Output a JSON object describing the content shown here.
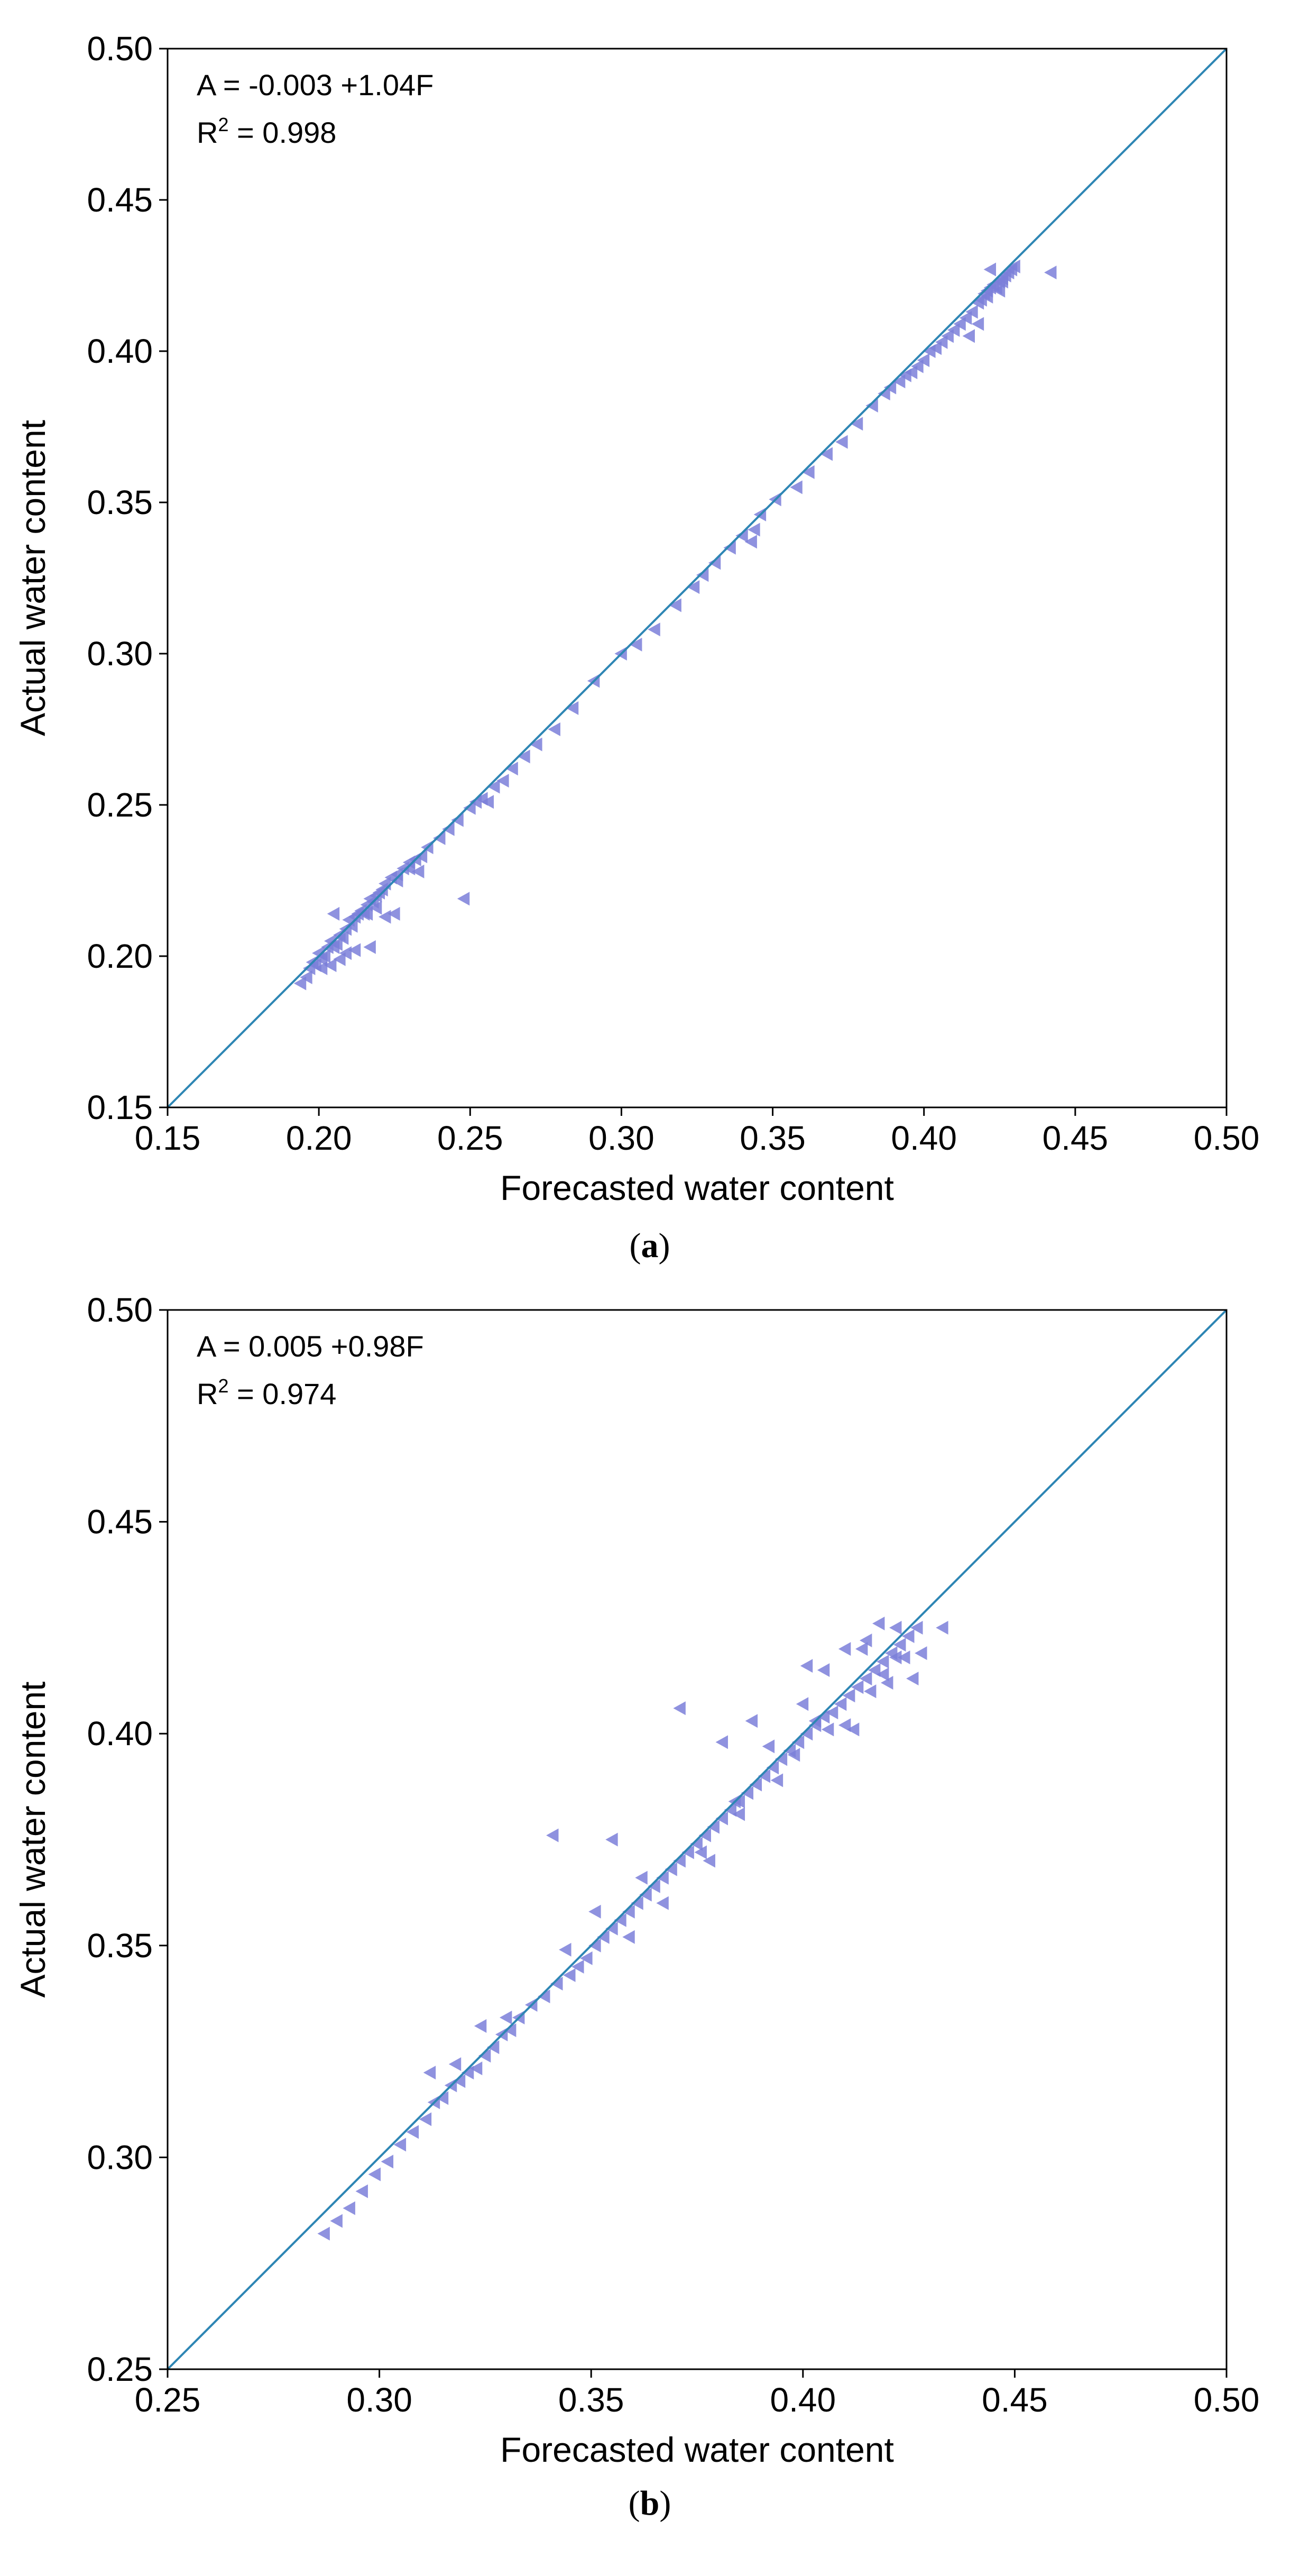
{
  "chart_data": [
    {
      "type": "scatter",
      "panel_label": "a",
      "xlabel": "Forecasted water content",
      "ylabel": "Actual water content",
      "xlim": [
        0.15,
        0.5
      ],
      "ylim": [
        0.15,
        0.5
      ],
      "xticks": [
        "0.15",
        "0.20",
        "0.25",
        "0.30",
        "0.35",
        "0.40",
        "0.45",
        "0.50"
      ],
      "yticks": [
        "0.15",
        "0.20",
        "0.25",
        "0.30",
        "0.35",
        "0.40",
        "0.45",
        "0.50"
      ],
      "equation": "A = -0.003 +1.04F",
      "r2_label": "R",
      "r2_sup": "2",
      "r2_value": " = 0.998",
      "identity_line": true,
      "grid": false,
      "marker": "triangle-left",
      "marker_color": "#7b7fd9",
      "line_color": "#2e86b4",
      "x": [
        0.194,
        0.196,
        0.197,
        0.198,
        0.199,
        0.2,
        0.201,
        0.202,
        0.203,
        0.204,
        0.205,
        0.206,
        0.207,
        0.208,
        0.209,
        0.21,
        0.211,
        0.212,
        0.213,
        0.214,
        0.215,
        0.216,
        0.217,
        0.218,
        0.219,
        0.22,
        0.221,
        0.222,
        0.224,
        0.226,
        0.228,
        0.23,
        0.232,
        0.234,
        0.201,
        0.204,
        0.207,
        0.209,
        0.212,
        0.216,
        0.219,
        0.222,
        0.225,
        0.217,
        0.205,
        0.226,
        0.236,
        0.23,
        0.233,
        0.24,
        0.243,
        0.246,
        0.248,
        0.25,
        0.252,
        0.254,
        0.256,
        0.258,
        0.261,
        0.264,
        0.268,
        0.272,
        0.278,
        0.284,
        0.291,
        0.3,
        0.305,
        0.311,
        0.318,
        0.324,
        0.327,
        0.331,
        0.336,
        0.34,
        0.344,
        0.343,
        0.346,
        0.351,
        0.358,
        0.362,
        0.368,
        0.373,
        0.378,
        0.383,
        0.387,
        0.389,
        0.392,
        0.394,
        0.396,
        0.398,
        0.4,
        0.402,
        0.404,
        0.406,
        0.408,
        0.41,
        0.412,
        0.414,
        0.416,
        0.418,
        0.419,
        0.42,
        0.421,
        0.422,
        0.423,
        0.424,
        0.425,
        0.426,
        0.427,
        0.428,
        0.429,
        0.43,
        0.418,
        0.415,
        0.422,
        0.425,
        0.421,
        0.426,
        0.442
      ],
      "y": [
        0.191,
        0.193,
        0.196,
        0.198,
        0.197,
        0.201,
        0.199,
        0.2,
        0.203,
        0.205,
        0.203,
        0.204,
        0.207,
        0.206,
        0.209,
        0.212,
        0.21,
        0.213,
        0.214,
        0.215,
        0.214,
        0.217,
        0.219,
        0.218,
        0.22,
        0.221,
        0.222,
        0.224,
        0.226,
        0.227,
        0.229,
        0.231,
        0.232,
        0.233,
        0.196,
        0.197,
        0.199,
        0.201,
        0.202,
        0.214,
        0.216,
        0.213,
        0.214,
        0.203,
        0.214,
        0.225,
        0.236,
        0.229,
        0.228,
        0.239,
        0.242,
        0.245,
        0.219,
        0.249,
        0.251,
        0.252,
        0.251,
        0.256,
        0.258,
        0.262,
        0.266,
        0.27,
        0.275,
        0.282,
        0.291,
        0.3,
        0.303,
        0.308,
        0.316,
        0.322,
        0.326,
        0.33,
        0.335,
        0.339,
        0.341,
        0.337,
        0.346,
        0.351,
        0.355,
        0.36,
        0.366,
        0.37,
        0.376,
        0.382,
        0.386,
        0.388,
        0.39,
        0.392,
        0.393,
        0.395,
        0.397,
        0.4,
        0.401,
        0.403,
        0.405,
        0.407,
        0.409,
        0.411,
        0.413,
        0.416,
        0.417,
        0.419,
        0.42,
        0.421,
        0.422,
        0.421,
        0.423,
        0.424,
        0.425,
        0.426,
        0.427,
        0.428,
        0.409,
        0.405,
        0.427,
        0.42,
        0.418,
        0.423,
        0.426
      ]
    },
    {
      "type": "scatter",
      "panel_label": "b",
      "xlabel": "Forecasted water content",
      "ylabel": "Actual water content",
      "xlim": [
        0.25,
        0.5
      ],
      "ylim": [
        0.25,
        0.5
      ],
      "xticks": [
        "0.25",
        "0.30",
        "0.35",
        "0.40",
        "0.45",
        "0.50"
      ],
      "yticks": [
        "0.25",
        "0.30",
        "0.35",
        "0.40",
        "0.45",
        "0.50"
      ],
      "equation": "A = 0.005 +0.98F",
      "r2_label": "R",
      "r2_sup": "2",
      "r2_value": " = 0.974",
      "identity_line": true,
      "grid": false,
      "marker": "triangle-left",
      "marker_color": "#7b7fd9",
      "line_color": "#2e86b4",
      "x": [
        0.287,
        0.29,
        0.293,
        0.296,
        0.299,
        0.302,
        0.305,
        0.308,
        0.311,
        0.313,
        0.315,
        0.317,
        0.319,
        0.321,
        0.323,
        0.325,
        0.327,
        0.329,
        0.331,
        0.333,
        0.336,
        0.339,
        0.342,
        0.345,
        0.347,
        0.349,
        0.351,
        0.353,
        0.355,
        0.357,
        0.359,
        0.361,
        0.363,
        0.365,
        0.367,
        0.369,
        0.371,
        0.373,
        0.375,
        0.377,
        0.379,
        0.381,
        0.383,
        0.385,
        0.387,
        0.389,
        0.391,
        0.393,
        0.395,
        0.397,
        0.399,
        0.401,
        0.403,
        0.405,
        0.407,
        0.409,
        0.411,
        0.413,
        0.415,
        0.417,
        0.419,
        0.421,
        0.423,
        0.425,
        0.427,
        0.312,
        0.318,
        0.324,
        0.33,
        0.341,
        0.355,
        0.371,
        0.381,
        0.388,
        0.392,
        0.401,
        0.405,
        0.41,
        0.415,
        0.419,
        0.424,
        0.428,
        0.433,
        0.4,
        0.403,
        0.41,
        0.412,
        0.416,
        0.42,
        0.418,
        0.422,
        0.406,
        0.398,
        0.385,
        0.376,
        0.344,
        0.351,
        0.362,
        0.359,
        0.367,
        0.378,
        0.394,
        0.384,
        0.414,
        0.426,
        0.422
      ],
      "y": [
        0.282,
        0.285,
        0.288,
        0.292,
        0.296,
        0.299,
        0.303,
        0.306,
        0.309,
        0.313,
        0.314,
        0.317,
        0.318,
        0.32,
        0.321,
        0.324,
        0.326,
        0.329,
        0.33,
        0.333,
        0.336,
        0.338,
        0.341,
        0.343,
        0.345,
        0.347,
        0.35,
        0.352,
        0.354,
        0.356,
        0.358,
        0.36,
        0.362,
        0.364,
        0.366,
        0.368,
        0.37,
        0.372,
        0.374,
        0.376,
        0.378,
        0.38,
        0.382,
        0.384,
        0.386,
        0.388,
        0.39,
        0.392,
        0.394,
        0.396,
        0.398,
        0.4,
        0.402,
        0.404,
        0.405,
        0.407,
        0.409,
        0.411,
        0.413,
        0.415,
        0.417,
        0.419,
        0.421,
        0.423,
        0.425,
        0.32,
        0.322,
        0.331,
        0.333,
        0.376,
        0.375,
        0.406,
        0.398,
        0.403,
        0.397,
        0.416,
        0.415,
        0.42,
        0.422,
        0.414,
        0.418,
        0.419,
        0.425,
        0.407,
        0.403,
        0.402,
        0.401,
        0.41,
        0.412,
        0.426,
        0.425,
        0.401,
        0.395,
        0.381,
        0.372,
        0.349,
        0.358,
        0.366,
        0.352,
        0.36,
        0.37,
        0.389,
        0.384,
        0.42,
        0.413,
        0.418
      ]
    }
  ]
}
